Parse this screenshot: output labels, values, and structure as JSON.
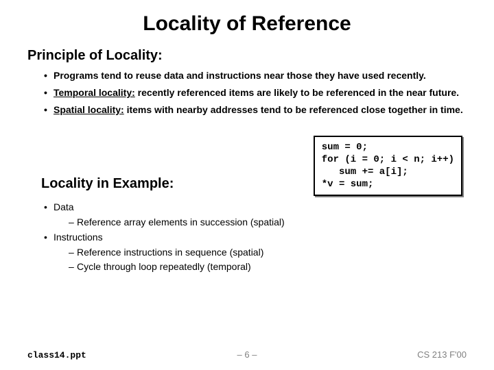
{
  "title": "Locality of Reference",
  "section1": {
    "heading": "Principle of Locality:",
    "bullets": [
      {
        "text": "Programs tend to reuse data and instructions near those they have used recently."
      },
      {
        "label": "Temporal locality:",
        "text": "  recently referenced items are likely to be referenced in the near future."
      },
      {
        "label": "Spatial locality:",
        "text": "  items with nearby addresses tend to be referenced close together in time."
      }
    ]
  },
  "code": {
    "l1": "sum = 0;",
    "l2": "for (i = 0; i < n; i++)",
    "l3": "   sum += a[i];",
    "l4": "*v = sum;"
  },
  "section2": {
    "heading": "Locality in Example:",
    "items": [
      {
        "label": "Data",
        "subs": [
          "Reference array elements in succession (spatial)"
        ]
      },
      {
        "label": "Instructions",
        "subs": [
          "Reference instructions in sequence (spatial)",
          "Cycle through loop repeatedly (temporal)"
        ]
      }
    ]
  },
  "footer": {
    "left": "class14.ppt",
    "center": "– 6 –",
    "right": "CS 213 F'00"
  }
}
